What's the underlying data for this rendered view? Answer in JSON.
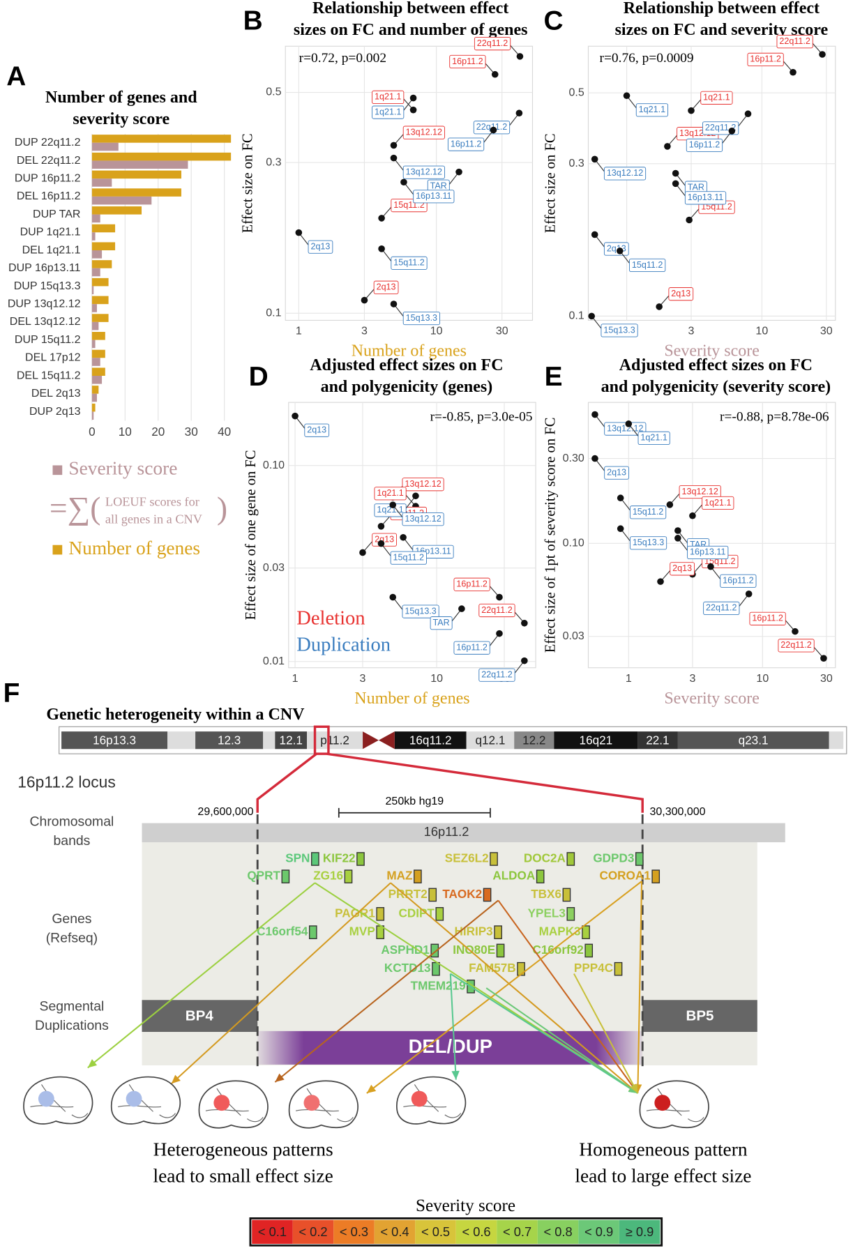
{
  "chart_data": [
    {
      "type": "bar",
      "label": "A",
      "title": [
        "Number of genes and",
        "severity score"
      ],
      "categories": [
        "DUP 22q11.2",
        "DEL 22q11.2",
        "DUP 16p11.2",
        "DEL 16p11.2",
        "DUP TAR",
        "DUP 1q21.1",
        "DEL 1q21.1",
        "DUP 16p13.11",
        "DUP 15q13.3",
        "DUP 13q12.12",
        "DEL 13q12.12",
        "DUP 15q11.2",
        "DEL 17p12",
        "DEL 15q11.2",
        "DEL 2q13",
        "DUP 2q13"
      ],
      "series": [
        {
          "name": "Number of genes",
          "color": "#d9a21b",
          "values": [
            42,
            42,
            27,
            27,
            15,
            7,
            7,
            6,
            5,
            5,
            5,
            4,
            4,
            4,
            2,
            1
          ]
        },
        {
          "name": "Severity score",
          "color": "#b99499",
          "values": [
            8,
            29,
            6,
            18,
            2.5,
            1,
            3,
            2.5,
            0.5,
            1.5,
            2,
            1,
            2.5,
            3,
            1.5,
            0.5
          ]
        }
      ],
      "xlim": [
        -2,
        44
      ],
      "xticks": [
        0,
        10,
        20,
        30,
        40
      ],
      "grid": true,
      "legend_formula": [
        "=∑(",
        ")"
      ],
      "legend_note": [
        "LOEUF scores for",
        "all genes in a CNV"
      ]
    },
    {
      "type": "scatter",
      "label": "B",
      "title": [
        "Relationship between effect",
        "sizes on FC and  number of genes"
      ],
      "annotation": "r=0.72, p=0.002",
      "x_label": "Number of genes",
      "x_label_color": "#d9a21b",
      "y_label": "Effect size on FC",
      "xscale": "log",
      "yscale": "log",
      "xlim": [
        0.8,
        50
      ],
      "ylim": [
        0.095,
        0.7
      ],
      "xticks": [
        1,
        3,
        10,
        30
      ],
      "yticks": [
        0.1,
        0.3,
        0.5
      ],
      "grid": true,
      "series": [
        {
          "color": "#e8312f",
          "labels": [
            "22q11.2",
            "16p11.2",
            "1q21.1",
            "13q12.12",
            "15q11.2",
            "2q13"
          ],
          "x": [
            40.5,
            26.7,
            6.8,
            4.9,
            4,
            3
          ],
          "values": [
            0.65,
            0.57,
            0.44,
            0.34,
            0.2,
            0.11
          ]
        },
        {
          "color": "#3a7dbf",
          "labels": [
            "1q21.1",
            "22q11.2",
            "16p11.2",
            "13q12.12",
            "TAR",
            "16p13.11",
            "2q13",
            "15q11.2",
            "15q13.3"
          ],
          "x": [
            6.8,
            40,
            26,
            4.9,
            14.6,
            5.8,
            1,
            4,
            4.9
          ],
          "values": [
            0.48,
            0.43,
            0.38,
            0.31,
            0.28,
            0.26,
            0.18,
            0.16,
            0.107
          ]
        }
      ]
    },
    {
      "type": "scatter",
      "label": "C",
      "title": [
        "Relationship between effect",
        "sizes on FC and severity score"
      ],
      "annotation": "r=0.76, p=0.0009",
      "x_label": "Severity score",
      "x_label_color": "#b99499",
      "y_label": "Effect size on FC",
      "xscale": "log",
      "yscale": "log",
      "xlim": [
        0.52,
        35
      ],
      "ylim": [
        0.097,
        0.7
      ],
      "xticks": [
        1,
        3,
        10,
        30
      ],
      "yticks": [
        0.1,
        0.3,
        0.5
      ],
      "grid": true,
      "series": [
        {
          "color": "#e8312f",
          "labels": [
            "22q11.2",
            "16p11.2",
            "1q21.1",
            "13q12.12",
            "15q11.2",
            "2q13"
          ],
          "x": [
            28,
            17,
            3,
            2,
            2.9,
            1.74
          ],
          "values": [
            0.66,
            0.58,
            0.44,
            0.34,
            0.2,
            0.107
          ]
        },
        {
          "color": "#3a7dbf",
          "labels": [
            "1q21.1",
            "22q11.2",
            "16p11.2",
            "13q12.12",
            "TAR",
            "16p13.11",
            "2q13",
            "15q11.2",
            "15q13.3"
          ],
          "x": [
            1,
            7.9,
            6,
            0.58,
            2.3,
            2.3,
            0.58,
            0.89,
            0.55
          ],
          "values": [
            0.49,
            0.43,
            0.38,
            0.31,
            0.28,
            0.26,
            0.18,
            0.16,
            0.1
          ]
        }
      ]
    },
    {
      "type": "scatter",
      "label": "D",
      "title": [
        "Adjusted effect sizes on FC",
        "and polygenicity (genes)"
      ],
      "annotation": "r=-0.85, p=3.0e-05",
      "x_label": "Number of genes",
      "x_label_color": "#d9a21b",
      "y_label": "Effect size of one gene on FC",
      "xscale": "log",
      "yscale": "log",
      "xlim": [
        0.9,
        50
      ],
      "ylim": [
        0.0093,
        0.21
      ],
      "xticks": [
        1,
        3,
        10,
        30
      ],
      "yticks": [
        0.01,
        0.03,
        {
          "value": 0.1,
          "label": "0.10"
        }
      ],
      "grid": true,
      "legend": "bottom-left",
      "series": [
        {
          "name": "Deletion",
          "color": "#e8312f",
          "labels": [
            "13q12.12",
            "1q21.1",
            "15q11.2",
            "2q13",
            "16p11.2",
            "22q11.2"
          ],
          "x": [
            4.9,
            7.1,
            4.05,
            3,
            27.7,
            41.6
          ],
          "values": [
            0.069,
            0.062,
            0.049,
            0.036,
            0.0213,
            0.0157
          ]
        },
        {
          "name": "Duplication",
          "color": "#3a7dbf",
          "labels": [
            "2q13",
            "1q21.1",
            "13q12.12",
            "16p13.11",
            "15q11.2",
            "15q13.3",
            "TAR",
            "16p11.2",
            "22q11.2"
          ],
          "x": [
            1,
            7.1,
            4.9,
            5.8,
            4.05,
            4.9,
            15,
            27.7,
            41.6
          ],
          "values": [
            0.179,
            0.07,
            0.063,
            0.043,
            0.04,
            0.0213,
            0.0186,
            0.0139,
            0.0101
          ]
        }
      ]
    },
    {
      "type": "scatter",
      "label": "E",
      "title": [
        "Adjusted effect sizes on FC",
        "and polygenicity (severity score)"
      ],
      "annotation": "r=-0.88, p=8.78e-06",
      "x_label": "Severity score",
      "x_label_color": "#b99499",
      "y_label": "Effect size of 1pt of severity score on FC",
      "xscale": "log",
      "yscale": "log",
      "xlim": [
        0.5,
        35
      ],
      "ylim": [
        0.02,
        0.62
      ],
      "xticks": [
        1,
        3,
        10,
        30
      ],
      "yticks": [
        0.03,
        {
          "value": 0.1,
          "label": "0.10"
        },
        {
          "value": 0.3,
          "label": "0.30"
        }
      ],
      "grid": true,
      "series": [
        {
          "color": "#e8312f",
          "labels": [
            "13q12.12",
            "1q21.1",
            "15q11.2",
            "2q13",
            "16p11.2",
            "22q11.2"
          ],
          "x": [
            2.03,
            3,
            3,
            1.73,
            17.5,
            28.6
          ],
          "values": [
            0.165,
            0.143,
            0.067,
            0.061,
            0.032,
            0.0226
          ]
        },
        {
          "color": "#3a7dbf",
          "labels": [
            "13q12.12",
            "1q21.1",
            "2q13",
            "15q11.2",
            "TAR",
            "15q13.3",
            "16p13.11",
            "16p11.2",
            "22q11.2"
          ],
          "x": [
            0.56,
            1,
            0.56,
            0.87,
            2.33,
            0.87,
            2.33,
            4.1,
            7.9
          ],
          "values": [
            0.53,
            0.47,
            0.3,
            0.18,
            0.118,
            0.121,
            0.107,
            0.074,
            0.052
          ]
        }
      ]
    }
  ],
  "panel_f": {
    "label": "F",
    "title": "Genetic heterogeneity within a CNV",
    "ideogram": [
      {
        "label": "16p13.3",
        "color": "#555555"
      },
      {
        "label": null,
        "color": "#dddddd"
      },
      {
        "label": "12.3",
        "color": "#555555"
      },
      {
        "label": null,
        "color": "#dddddd"
      },
      {
        "label": "12.1",
        "color": "#444444"
      },
      {
        "label": "p11.2",
        "color": "#dddddd"
      },
      {
        "label": "16q11.2",
        "color": "#111111"
      },
      {
        "label": "q12.1",
        "color": "#dddddd"
      },
      {
        "label": "12.2",
        "color": "#888888"
      },
      {
        "label": "16q21",
        "color": "#111111"
      },
      {
        "label": "22.1",
        "color": "#333333"
      },
      {
        "label": "q23.1",
        "color": "#555555"
      },
      {
        "label": null,
        "color": "#dddddd"
      }
    ],
    "locus": "16p11.2 locus",
    "coordinates": [
      "29,600,000",
      "30,300,000"
    ],
    "scale_bar": "250kb hg19",
    "tracks": [
      [
        "Chromosomal",
        "bands"
      ],
      [
        "Genes",
        "(Refseq)"
      ],
      [
        "Segmental",
        "Duplications"
      ]
    ],
    "band": "16p11.2",
    "genes": [
      {
        "name": "SPN",
        "color": "#5cc87a"
      },
      {
        "name": "KIF22",
        "color": "#8cc63e"
      },
      {
        "name": "SEZ6L2",
        "color": "#c8c03a"
      },
      {
        "name": "DOC2A",
        "color": "#a0c83a"
      },
      {
        "name": "GDPD3",
        "color": "#6cc86c"
      },
      {
        "name": "QPRT",
        "color": "#6cc86c"
      },
      {
        "name": "ZG16",
        "color": "#a8d040"
      },
      {
        "name": "MAZ",
        "color": "#d4a020"
      },
      {
        "name": "ALDOA",
        "color": "#8cc63e"
      },
      {
        "name": "COROA1",
        "color": "#d4a020"
      },
      {
        "name": "PRRT2",
        "color": "#c8c03a"
      },
      {
        "name": "TAOK2",
        "color": "#d86a20"
      },
      {
        "name": "TBX6",
        "color": "#c8c03a"
      },
      {
        "name": "PAGR1",
        "color": "#c8c03a"
      },
      {
        "name": "CDIPT",
        "color": "#a8d040"
      },
      {
        "name": "YPEL3",
        "color": "#8cd060"
      },
      {
        "name": "C16orf54",
        "color": "#6cc86c"
      },
      {
        "name": "MVP",
        "color": "#a8d040"
      },
      {
        "name": "HIRIP3",
        "color": "#c8c03a"
      },
      {
        "name": "MAPK3",
        "color": "#a8d040"
      },
      {
        "name": "ASPHD1",
        "color": "#6cc86c"
      },
      {
        "name": "INO80E",
        "color": "#8cc63e"
      },
      {
        "name": "C16orf92",
        "color": "#8cc63e"
      },
      {
        "name": "KCTD13",
        "color": "#6cc86c"
      },
      {
        "name": "FAM57B",
        "color": "#c8c03a"
      },
      {
        "name": "PPP4C",
        "color": "#c8c03a"
      },
      {
        "name": "TMEM219",
        "color": "#6cc86c"
      }
    ],
    "breakpoints": [
      "BP4",
      "BP5"
    ],
    "cnv": "DEL/DUP",
    "captions": [
      [
        "Heterogeneous patterns",
        "lead to small effect size"
      ],
      [
        "Homogeneous pattern",
        "lead to large effect size"
      ]
    ],
    "severity_legend": {
      "title": "Severity score",
      "bins": [
        {
          "label": "< 0.1",
          "color": "#e02424"
        },
        {
          "label": "< 0.2",
          "color": "#e8502a"
        },
        {
          "label": "< 0.3",
          "color": "#ec7c26"
        },
        {
          "label": "< 0.4",
          "color": "#e2a332"
        },
        {
          "label": "< 0.5",
          "color": "#d8c43a"
        },
        {
          "label": "< 0.6",
          "color": "#c6d640"
        },
        {
          "label": "< 0.7",
          "color": "#a6d44a"
        },
        {
          "label": "< 0.8",
          "color": "#88d060"
        },
        {
          "label": "< 0.9",
          "color": "#6cc878"
        },
        {
          "label": "≥ 0.9",
          "color": "#4cb87c"
        }
      ]
    }
  }
}
